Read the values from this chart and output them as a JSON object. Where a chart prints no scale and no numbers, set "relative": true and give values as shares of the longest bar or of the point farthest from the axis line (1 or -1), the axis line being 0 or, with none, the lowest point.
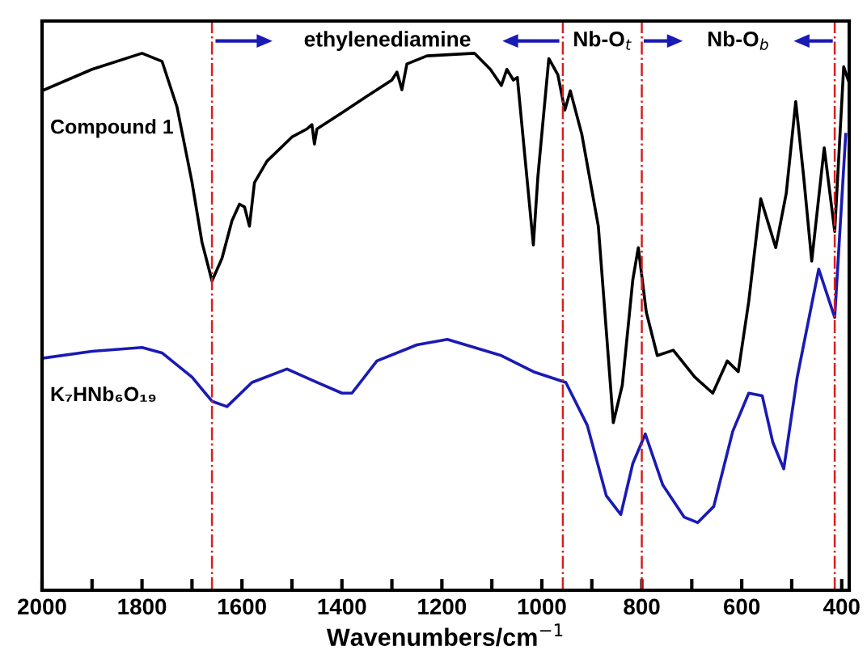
{
  "chart_data": {
    "type": "line",
    "relative": true,
    "xlabel": "Wavenumbers/cm$^{−1}$",
    "x": [
      2000,
      1900,
      1800,
      1760,
      1730,
      1700,
      1680,
      1660,
      1640,
      1620,
      1605,
      1595,
      1585,
      1575,
      1550,
      1500,
      1470,
      1460,
      1455,
      1450,
      1400,
      1350,
      1300,
      1290,
      1280,
      1270,
      1230,
      1135,
      1103,
      1081,
      1070,
      1057,
      1049,
      1033,
      1017,
      1008,
      1000,
      986,
      968,
      954,
      943,
      920,
      887,
      857,
      839,
      818,
      807,
      791,
      769,
      737,
      694,
      658,
      629,
      607,
      586,
      562,
      532,
      511,
      492,
      476,
      460,
      435,
      414,
      396,
      387
    ],
    "series": [
      {
        "name": "Compound 1",
        "color": "#000000",
        "values": [
          0.93,
          0.97,
          1.0,
          0.985,
          0.9,
          0.76,
          0.648,
          0.576,
          0.618,
          0.688,
          0.719,
          0.714,
          0.678,
          0.759,
          0.799,
          0.844,
          0.859,
          0.867,
          0.831,
          0.859,
          0.889,
          0.92,
          0.95,
          0.965,
          0.932,
          0.98,
          0.995,
          1.0,
          0.97,
          0.94,
          0.97,
          0.95,
          0.955,
          0.799,
          0.643,
          0.769,
          0.85,
          0.99,
          0.96,
          0.894,
          0.93,
          0.849,
          0.678,
          0.312,
          0.382,
          0.578,
          0.638,
          0.518,
          0.437,
          0.447,
          0.397,
          0.367,
          0.427,
          0.407,
          0.538,
          0.729,
          0.638,
          0.739,
          0.91,
          0.769,
          0.613,
          0.824,
          0.668,
          0.975,
          0.95
        ]
      },
      {
        "name": "K₇HNb₆O₁₉",
        "color": "#1a1ab4",
        "x": [
          2000,
          1900,
          1800,
          1760,
          1700,
          1660,
          1630,
          1580,
          1510,
          1450,
          1400,
          1380,
          1330,
          1250,
          1189,
          1081,
          1017,
          952,
          909,
          871,
          842,
          818,
          793,
          758,
          715,
          688,
          656,
          618,
          586,
          559,
          538,
          516,
          489,
          446,
          414,
          392
        ],
        "values": [
          0.432,
          0.445,
          0.452,
          0.442,
          0.397,
          0.352,
          0.342,
          0.387,
          0.412,
          0.387,
          0.367,
          0.367,
          0.427,
          0.457,
          0.467,
          0.437,
          0.407,
          0.387,
          0.307,
          0.176,
          0.141,
          0.236,
          0.291,
          0.196,
          0.136,
          0.126,
          0.156,
          0.296,
          0.367,
          0.362,
          0.276,
          0.226,
          0.397,
          0.598,
          0.508,
          0.849
        ]
      }
    ],
    "xlim": [
      2000,
      385
    ],
    "xticks": [
      2000,
      {
        "value": 1900,
        "label": null
      },
      1800,
      {
        "value": 1700,
        "label": null
      },
      1600,
      {
        "value": 1500,
        "label": null
      },
      1400,
      {
        "value": 1300,
        "label": null
      },
      1200,
      {
        "value": 1100,
        "label": null
      },
      1000,
      {
        "value": 900,
        "label": null
      },
      800,
      {
        "value": 700,
        "label": null
      },
      600,
      {
        "value": 500,
        "label": null
      },
      400
    ],
    "ref_lines": [
      {
        "axis": "x",
        "value": 1660,
        "color": "#d62020",
        "line_style": "dashdot"
      },
      {
        "axis": "x",
        "value": 958,
        "color": "#d62020",
        "line_style": "dashdot"
      },
      {
        "axis": "x",
        "value": 800,
        "color": "#d62020",
        "line_style": "dashdot"
      },
      {
        "axis": "x",
        "value": 414,
        "color": "#d62020",
        "line_style": "dashdot"
      }
    ],
    "annotations": [
      "ethylenediamine",
      "Nb-O$_{t}$",
      "Nb-O$_{b}$"
    ],
    "tick_labels": "x",
    "grid": false,
    "legend": false,
    "line_style": "solid",
    "marker": "none"
  }
}
